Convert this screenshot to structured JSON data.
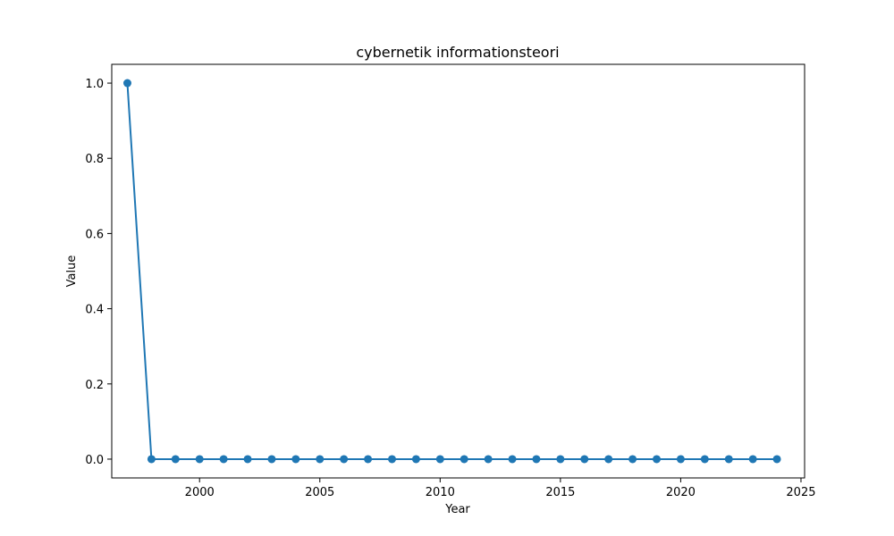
{
  "chart_data": {
    "type": "line",
    "title": "cybernetik informationsteori",
    "xlabel": "Year",
    "ylabel": "Value",
    "xlim": [
      1996.35,
      2025.15
    ],
    "ylim": [
      -0.05,
      1.05
    ],
    "xticks": [
      2000,
      2005,
      2010,
      2015,
      2020,
      2025
    ],
    "yticks": [
      0.0,
      0.2,
      0.4,
      0.6,
      0.8,
      1.0
    ],
    "xtick_labels": [
      "2000",
      "2005",
      "2010",
      "2015",
      "2020",
      "2025"
    ],
    "ytick_labels": [
      "0.0",
      "0.2",
      "0.4",
      "0.6",
      "0.8",
      "1.0"
    ],
    "grid": false,
    "series": [
      {
        "color": "#1f77b4",
        "marker": "circle",
        "x": [
          1997,
          1998,
          1999,
          2000,
          2001,
          2002,
          2003,
          2004,
          2005,
          2006,
          2007,
          2008,
          2009,
          2010,
          2011,
          2012,
          2013,
          2014,
          2015,
          2016,
          2017,
          2018,
          2019,
          2020,
          2021,
          2022,
          2023,
          2024
        ],
        "y": [
          1.0,
          0,
          0,
          0,
          0,
          0,
          0,
          0,
          0,
          0,
          0,
          0,
          0,
          0,
          0,
          0,
          0,
          0,
          0,
          0,
          0,
          0,
          0,
          0,
          0,
          0,
          0,
          0
        ]
      }
    ]
  }
}
